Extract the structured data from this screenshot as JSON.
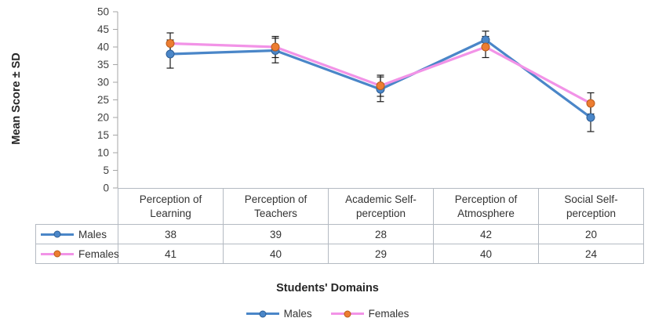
{
  "chart_data": {
    "type": "line",
    "ylabel": "Mean Score ± SD",
    "xlabel": "Students' Domains",
    "ylim": [
      0,
      50
    ],
    "ytick_step": 5,
    "grid": false,
    "legend_position": "bottom",
    "data_table": true,
    "categories": [
      "Perception of Learning",
      "Perception of Teachers",
      "Academic Self-perception",
      "Perception of Atmosphere",
      "Social Self-perception"
    ],
    "categories_lines": [
      [
        "Perception of",
        "Learning"
      ],
      [
        "Perception of",
        "Teachers"
      ],
      [
        "Academic Self-",
        "perception"
      ],
      [
        "Perception of",
        "Atmosphere"
      ],
      [
        "Social Self-",
        "perception"
      ]
    ],
    "series": [
      {
        "name": "Males",
        "values": [
          38,
          39,
          28,
          42,
          20
        ],
        "sd": [
          4,
          3.5,
          3.5,
          2.5,
          4
        ],
        "line_color": "#4a86c8",
        "marker_color": "#4a86c8",
        "marker_edge": "#2e5f96"
      },
      {
        "name": "Females",
        "values": [
          41,
          40,
          29,
          40,
          24
        ],
        "sd": [
          3,
          3,
          3,
          3,
          3
        ],
        "line_color": "#f293e7",
        "marker_color": "#ed7d31",
        "marker_edge": "#b85c1d"
      }
    ],
    "error_bar_color": "#1a1a1a",
    "axis_color": "#a6a6a6",
    "tick_label_color": "#404040"
  }
}
